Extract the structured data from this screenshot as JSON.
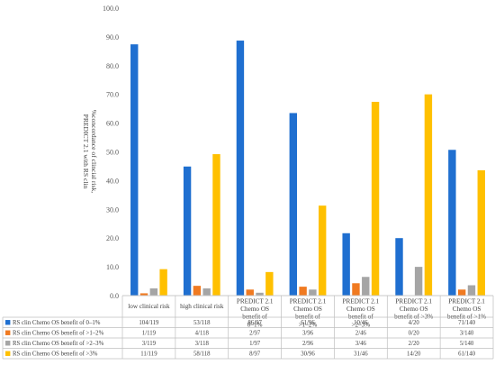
{
  "chart_data": {
    "type": "bar",
    "ylabel": "%concordance of clincial risk,\nPREDICT 2.1 with RS clin",
    "ylim": [
      0,
      100
    ],
    "yticks": [
      "0.0",
      "10.0",
      "20.0",
      "30.0",
      "40.0",
      "50.0",
      "60.0",
      "70.0",
      "80.0",
      "90.0",
      "100.0"
    ],
    "grid": false,
    "legend": "data-table-bottom",
    "categories": [
      "low clinical risk",
      "high clinical risk",
      "PREDICT 2.1 Chemo OS benefit of 0–1%",
      "PREDICT 2.1 Chemo OS benefit of >1–2%",
      "PREDICT 2.1 Chemo OS benefit of >2–3%",
      "PREDICT 2.1 Chemo OS benefit of >3%",
      "PREDICT 2.1 Chemo OS benefit of >1%"
    ],
    "series": [
      {
        "name": "RS clin Chemo OS benefit of 0–1%",
        "color": "#1f6fd0",
        "values": [
          87.4,
          44.9,
          88.7,
          63.5,
          21.7,
          20.0,
          50.7
        ],
        "table": [
          "104/119",
          "53/118",
          "86/97",
          "61/96",
          "10/46",
          "4/20",
          "71/140"
        ]
      },
      {
        "name": "RS clin Chemo OS benefit of >1–2%",
        "color": "#f07a21",
        "values": [
          0.8,
          3.4,
          2.1,
          3.1,
          4.3,
          0.0,
          2.1
        ],
        "table": [
          "1/119",
          "4/118",
          "2/97",
          "3/96",
          "2/46",
          "0/20",
          "3/140"
        ]
      },
      {
        "name": "RS clin Chemo OS benefit of >2–3%",
        "color": "#a5a5a5",
        "values": [
          2.5,
          2.5,
          1.0,
          2.1,
          6.5,
          10.0,
          3.6
        ],
        "table": [
          "3/119",
          "3/118",
          "1/97",
          "2/96",
          "3/46",
          "2/20",
          "5/140"
        ]
      },
      {
        "name": "RS clin Chemo OS benefit of >3%",
        "color": "#ffc000",
        "values": [
          9.2,
          49.2,
          8.2,
          31.3,
          67.4,
          70.0,
          43.6
        ],
        "table": [
          "11/119",
          "58/118",
          "8/97",
          "30/96",
          "31/46",
          "14/20",
          "61/140"
        ]
      }
    ]
  }
}
